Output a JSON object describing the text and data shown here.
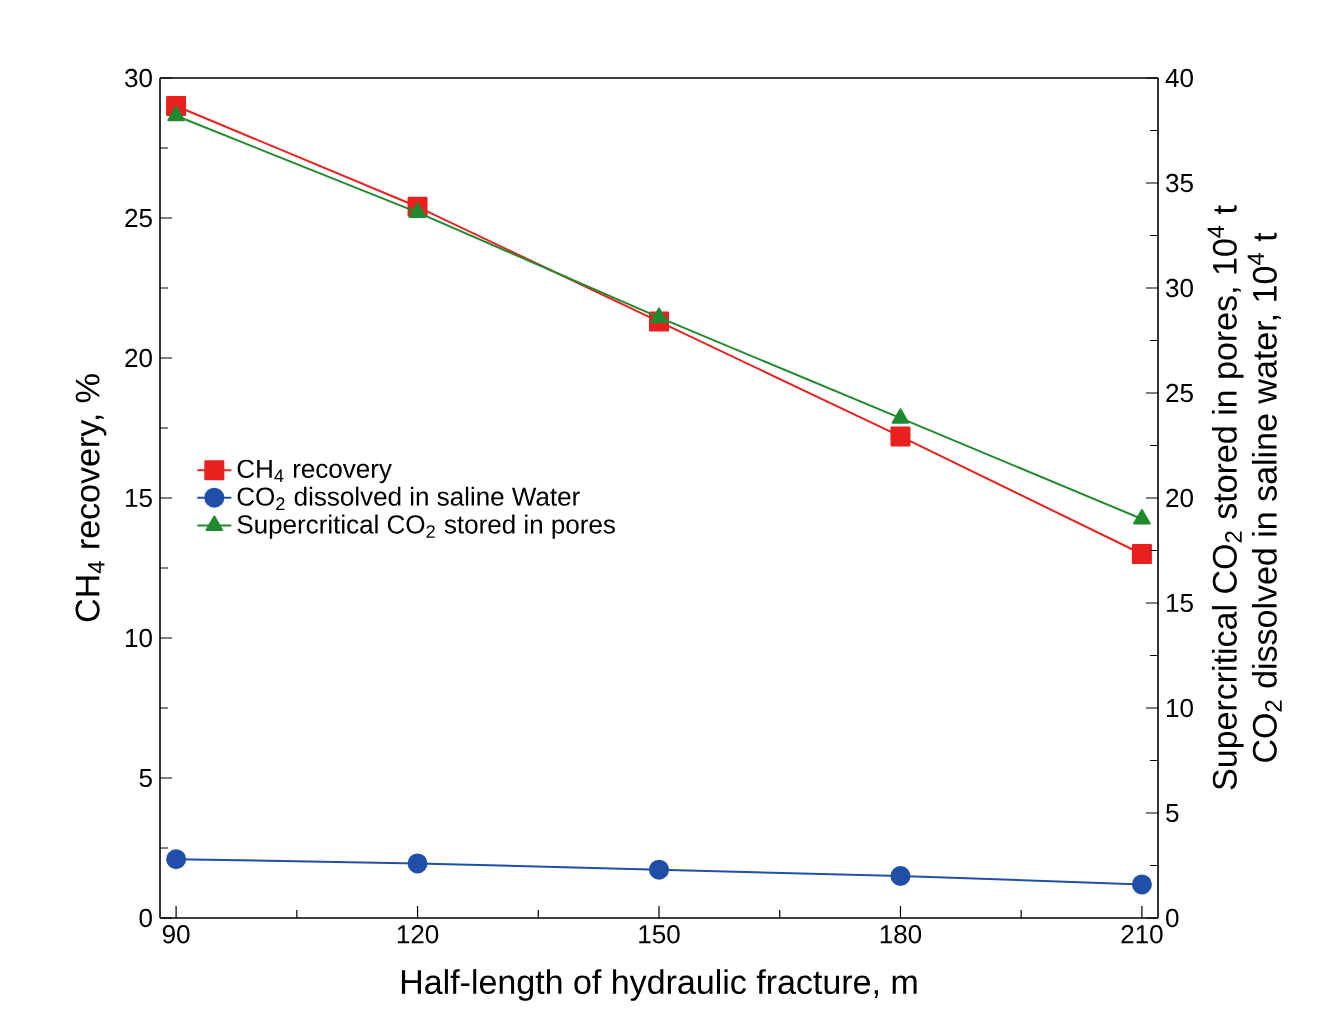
{
  "chart_data": {
    "type": "line",
    "xlabel": "Half-length of hydraulic fracture, m",
    "ylabel": "CH$_{4}$ recovery, %",
    "y2label": [
      "Supercritical CO$_{2}$ stored in pores, 10$^{4}$ t",
      "CO$_{2}$ dissolved in saline water, 10$^{4}$ t"
    ],
    "x": [
      90,
      120,
      150,
      180,
      210
    ],
    "xlim": [
      88,
      212
    ],
    "xticks": [
      90,
      120,
      150,
      180,
      210
    ],
    "ylim": [
      0,
      30
    ],
    "yticks": [
      0,
      5,
      10,
      15,
      20,
      25,
      30
    ],
    "y2lim": [
      0,
      40
    ],
    "y2ticks": [
      0,
      5,
      10,
      15,
      20,
      25,
      30,
      35,
      40
    ],
    "legend": "left",
    "grid": false,
    "series": [
      {
        "name": "CH$_{4}$ recovery",
        "color": "#e8201f",
        "marker": "square",
        "values": [
          29.0,
          25.4,
          21.3,
          17.2,
          13.0
        ]
      },
      {
        "name": "CO$_{2}$ dissolved in saline Water",
        "color": "#1f4fa8",
        "marker": "circle",
        "axis": "y2",
        "values": [
          2.8,
          2.6,
          2.3,
          2.0,
          1.6
        ]
      },
      {
        "name": "Supercritical CO$_{2}$ stored in pores",
        "color": "#1f8a2e",
        "marker": "triangle",
        "axis": "y2",
        "values": [
          38.2,
          33.6,
          28.6,
          23.8,
          19.0
        ]
      }
    ]
  }
}
